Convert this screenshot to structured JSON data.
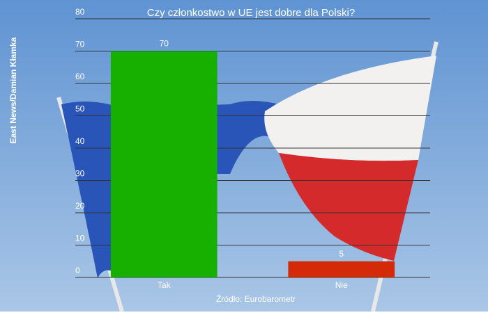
{
  "chart_data": {
    "type": "bar",
    "title": "Czy członkostwo w UE  jest dobre dla Polski?",
    "categories": [
      "Tak",
      "Nie"
    ],
    "values": [
      70,
      5
    ],
    "colors": [
      "#18b000",
      "#d42a0a"
    ],
    "ylim": [
      0,
      80
    ],
    "yticks": [
      0,
      10,
      20,
      30,
      40,
      50,
      60,
      70,
      80
    ],
    "grid": true,
    "credit": "East News/Damian Kłamka",
    "source": "Źródło: Eurobarometr"
  }
}
